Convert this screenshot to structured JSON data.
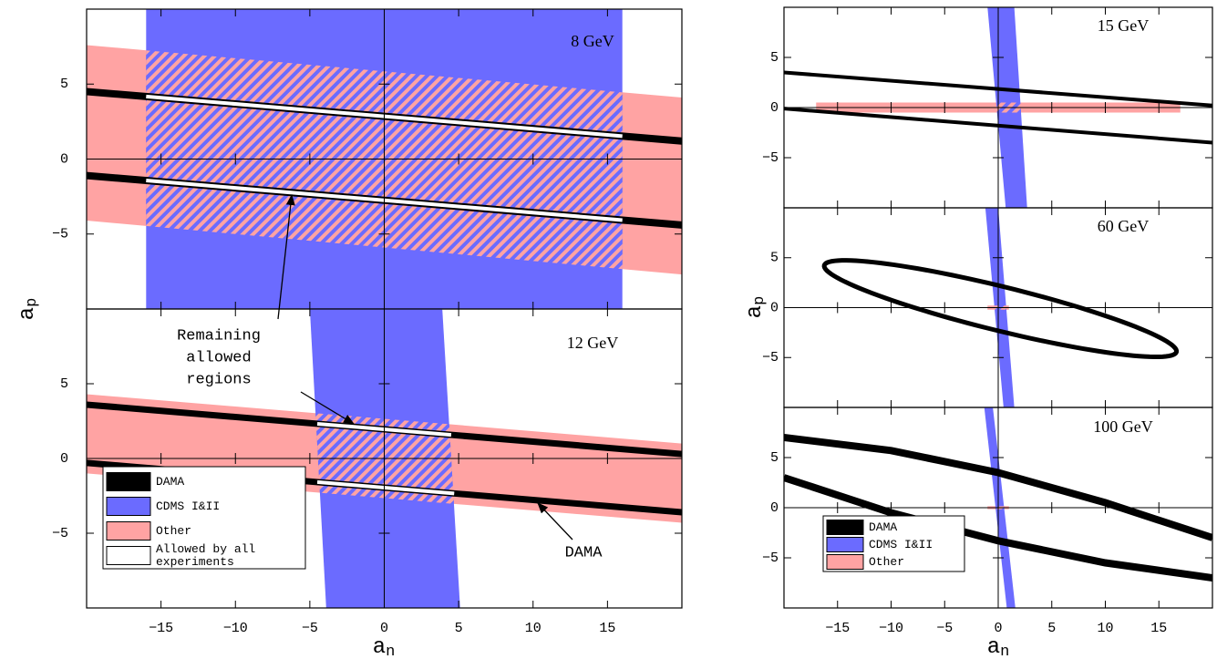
{
  "chart_data": [
    {
      "type": "region",
      "label": "8 GeV",
      "xlim": [
        -20,
        20
      ],
      "ylim": [
        -10,
        10
      ],
      "xticks": [
        {
          "value": -15,
          "label": "−15"
        },
        {
          "value": -10,
          "label": "−10"
        },
        {
          "value": -5,
          "label": "−5"
        },
        0,
        5,
        10,
        15
      ],
      "yticks": [
        {
          "value": -5,
          "label": "−5"
        },
        0,
        5
      ],
      "ylabel": {
        "base": "a",
        "sub": "p"
      },
      "series": [
        {
          "name": "DAMA",
          "color": "#000000",
          "lines": [
            [
              [
                -20,
                4.5
              ],
              [
                20,
                1.2
              ]
            ],
            [
              [
                -20,
                -1.1
              ],
              [
                20,
                -4.4
              ]
            ]
          ]
        },
        {
          "name": "CDMS I&II",
          "color": "#6b6bff",
          "polygons": [
            [
              [
                -16,
                10
              ],
              [
                16,
                10
              ],
              [
                16,
                -10
              ],
              [
                -16,
                -10
              ]
            ]
          ]
        },
        {
          "name": "Other",
          "color": "#ffa3a3",
          "polygons": [
            [
              [
                -20,
                7.6
              ],
              [
                20,
                4.1
              ],
              [
                20,
                -7.7
              ],
              [
                -20,
                -4.1
              ]
            ]
          ]
        },
        {
          "name": "Allowed by all experiments",
          "color": "#ffffff",
          "lines": [
            [
              [
                -16,
                4.17
              ],
              [
                16,
                1.53
              ]
            ],
            [
              [
                -16,
                -1.43
              ],
              [
                16,
                -4.07
              ]
            ]
          ]
        }
      ]
    },
    {
      "type": "region",
      "label": "12 GeV",
      "xlim": [
        -20,
        20
      ],
      "ylim": [
        -10,
        10
      ],
      "xticks": [
        {
          "value": -15,
          "label": "−15"
        },
        {
          "value": -10,
          "label": "−10"
        },
        {
          "value": -5,
          "label": "−5"
        },
        0,
        5,
        10,
        15
      ],
      "yticks": [
        {
          "value": -5,
          "label": "−5"
        },
        0,
        5
      ],
      "show_xticklabels": true,
      "xlabel": {
        "base": "a",
        "sub": "n"
      },
      "legend": "lower left",
      "annotations": [
        {
          "lines": [
            "Remaining",
            "allowed",
            "regions"
          ]
        },
        {
          "lines": [
            "DAMA"
          ]
        }
      ],
      "series": [
        {
          "name": "DAMA",
          "color": "#000000",
          "lines": [
            [
              [
                -20,
                3.6
              ],
              [
                20,
                0.3
              ]
            ],
            [
              [
                -20,
                -0.3
              ],
              [
                20,
                -3.6
              ]
            ]
          ]
        },
        {
          "name": "CDMS I&II",
          "color": "#6b6bff",
          "polygons": [
            [
              [
                -5,
                10
              ],
              [
                3.9,
                10
              ],
              [
                5.1,
                -10
              ],
              [
                -3.9,
                -10
              ]
            ]
          ]
        },
        {
          "name": "Other",
          "color": "#ffa3a3",
          "polygons": [
            [
              [
                -20,
                4.3
              ],
              [
                20,
                1
              ],
              [
                20,
                -4.3
              ],
              [
                -20,
                -1
              ]
            ]
          ]
        },
        {
          "name": "Allowed by all experiments",
          "color": "#ffffff",
          "lines": [
            [
              [
                -4.5,
                2.32
              ],
              [
                4.5,
                1.58
              ]
            ],
            [
              [
                -4.5,
                -1.58
              ],
              [
                4.7,
                -2.34
              ]
            ]
          ]
        }
      ]
    },
    {
      "type": "region",
      "label": "15 GeV",
      "xlim": [
        -20,
        20
      ],
      "ylim": [
        -10,
        10
      ],
      "xticks": [
        {
          "value": -15,
          "label": "−15"
        },
        {
          "value": -10,
          "label": "−10"
        },
        {
          "value": -5,
          "label": "−5"
        },
        0,
        5,
        10,
        15
      ],
      "yticks": [
        {
          "value": -5,
          "label": "−5"
        },
        0,
        5
      ],
      "ylabel": {
        "base": "a",
        "sub": "p"
      },
      "series": [
        {
          "name": "DAMA",
          "color": "#000000",
          "lines": [
            [
              [
                -20,
                3.5
              ],
              [
                20,
                0.2
              ]
            ],
            [
              [
                -20,
                -0.1
              ],
              [
                20,
                -3.5
              ]
            ]
          ]
        },
        {
          "name": "CDMS I&II",
          "color": "#6b6bff",
          "polygons": [
            [
              [
                -1,
                10
              ],
              [
                1.5,
                10
              ],
              [
                2.7,
                -10
              ],
              [
                0.7,
                -10
              ]
            ]
          ]
        },
        {
          "name": "Other",
          "color": "#ffa3a3",
          "polygons": [
            [
              [
                -17,
                0.5
              ],
              [
                17,
                0.5
              ],
              [
                17,
                -0.5
              ],
              [
                -17,
                -0.5
              ]
            ]
          ]
        }
      ]
    },
    {
      "type": "region",
      "label": "60 GeV",
      "xlim": [
        -20,
        20
      ],
      "ylim": [
        -10,
        10
      ],
      "xticks": [
        {
          "value": -15,
          "label": "−15"
        },
        {
          "value": -10,
          "label": "−10"
        },
        {
          "value": -5,
          "label": "−5"
        },
        0,
        5,
        10,
        15
      ],
      "yticks": [
        {
          "value": -5,
          "label": "−5"
        },
        0,
        5
      ],
      "series": [
        {
          "name": "DAMA",
          "color": "#000000",
          "ellipse": {
            "center": [
              0.2,
              -0.1
            ],
            "axes": [
              17,
              2.2
            ],
            "angle": -14.8
          }
        },
        {
          "name": "CDMS I&II",
          "color": "#6b6bff",
          "polygons": [
            [
              [
                -1.2,
                10
              ],
              [
                0,
                10
              ],
              [
                1.5,
                -10
              ],
              [
                0.5,
                -10
              ]
            ]
          ]
        },
        {
          "name": "Other",
          "color": "#ffa3a3",
          "polygons": [
            [
              [
                -1,
                0.2
              ],
              [
                1,
                0.2
              ],
              [
                1,
                -0.2
              ],
              [
                -1,
                -0.2
              ]
            ]
          ]
        }
      ]
    },
    {
      "type": "region",
      "label": "100 GeV",
      "xlim": [
        -20,
        20
      ],
      "ylim": [
        -10,
        10
      ],
      "xticks": [
        {
          "value": -15,
          "label": "−15"
        },
        {
          "value": -10,
          "label": "−10"
        },
        {
          "value": -5,
          "label": "−5"
        },
        0,
        5,
        10,
        15
      ],
      "yticks": [
        {
          "value": -5,
          "label": "−5"
        },
        0,
        5
      ],
      "show_xticklabels": true,
      "xlabel": {
        "base": "a",
        "sub": "n"
      },
      "legend": "lower left",
      "series": [
        {
          "name": "DAMA",
          "color": "#000000",
          "lines": [
            [
              [
                -20,
                7
              ],
              [
                -10,
                5.7
              ],
              [
                0,
                3.5
              ],
              [
                10,
                0.5
              ],
              [
                20,
                -3
              ]
            ],
            [
              [
                -20,
                3
              ],
              [
                -10,
                -0.5
              ],
              [
                0,
                -3.3
              ],
              [
                10,
                -5.5
              ],
              [
                20,
                -7
              ]
            ]
          ]
        },
        {
          "name": "CDMS I&II",
          "color": "#6b6bff",
          "polygons": [
            [
              [
                -1.3,
                10
              ],
              [
                -0.5,
                10
              ],
              [
                1.6,
                -10
              ],
              [
                0.8,
                -10
              ]
            ]
          ]
        },
        {
          "name": "Other",
          "color": "#ffa3a3",
          "polygons": [
            [
              [
                -1,
                0.15
              ],
              [
                1,
                0.15
              ],
              [
                1,
                -0.15
              ],
              [
                -1,
                -0.15
              ]
            ]
          ]
        }
      ]
    }
  ]
}
